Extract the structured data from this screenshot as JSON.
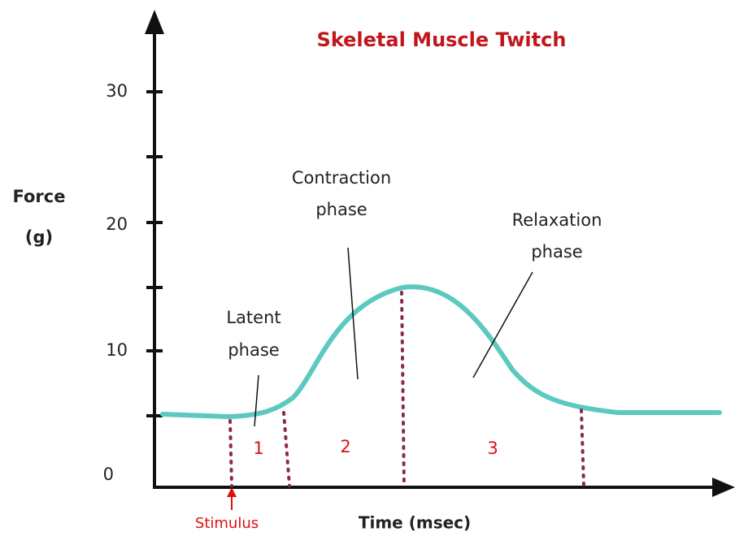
{
  "title": "Skeletal Muscle Twitch",
  "y_axis": {
    "label": [
      "Force",
      "(g)"
    ],
    "ticks": [
      "30",
      "20",
      "10",
      "0"
    ]
  },
  "x_axis": {
    "label": "Time (msec)"
  },
  "stimulus": "Stimulus",
  "phases": [
    {
      "label": [
        "Latent",
        "phase"
      ],
      "number": "1"
    },
    {
      "label": [
        "Contraction",
        "phase"
      ],
      "number": "2"
    },
    {
      "label": [
        "Relaxation",
        "phase"
      ],
      "number": "3"
    }
  ]
}
